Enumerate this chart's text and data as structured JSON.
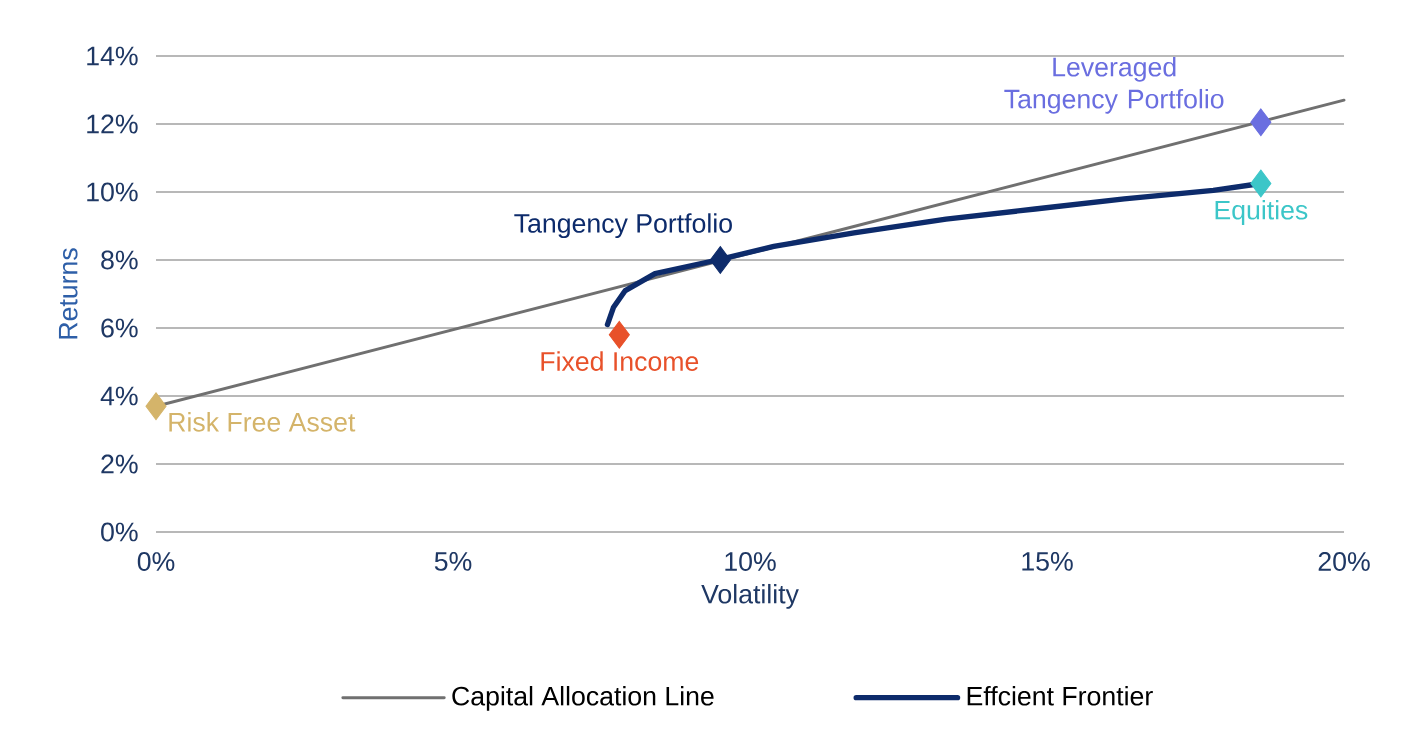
{
  "chart_data": {
    "type": "scatter",
    "xlabel": "Volatility",
    "ylabel": "Returns",
    "xlim": [
      0,
      20
    ],
    "ylim": [
      0,
      14
    ],
    "xticks": [
      {
        "value": 0,
        "label": "0%"
      },
      {
        "value": 5,
        "label": "5%"
      },
      {
        "value": 10,
        "label": "10%"
      },
      {
        "value": 15,
        "label": "15%"
      },
      {
        "value": 20,
        "label": "20%"
      }
    ],
    "yticks": [
      {
        "value": 0,
        "label": "0%"
      },
      {
        "value": 2,
        "label": "2%"
      },
      {
        "value": 4,
        "label": "4%"
      },
      {
        "value": 6,
        "label": "6%"
      },
      {
        "value": 8,
        "label": "8%"
      },
      {
        "value": 10,
        "label": "10%"
      },
      {
        "value": 12,
        "label": "12%"
      },
      {
        "value": 14,
        "label": "14%"
      }
    ],
    "grid": "y",
    "legend": "bottom",
    "series": [
      {
        "name": "Capital Allocation Line",
        "type": "line",
        "color": "#707070",
        "x": [
          0,
          20
        ],
        "values": [
          3.7,
          12.7
        ]
      },
      {
        "name": "Effcient Frontier",
        "type": "line",
        "color": "#0d2b6b",
        "x": [
          7.6,
          7.7,
          7.9,
          8.4,
          9.45,
          10.4,
          11.75,
          13.3,
          14.8,
          16.3,
          17.8,
          18.6
        ],
        "values": [
          6.1,
          6.6,
          7.1,
          7.6,
          8.0,
          8.4,
          8.8,
          9.2,
          9.5,
          9.8,
          10.05,
          10.25
        ]
      },
      {
        "name": "Risk Free Asset",
        "marker": "diamond",
        "color": "#d4b46a",
        "x": [
          0
        ],
        "values": [
          3.7
        ]
      },
      {
        "name": "Fixed Income",
        "marker": "diamond",
        "color": "#e8512a",
        "x": [
          7.8
        ],
        "values": [
          5.8
        ]
      },
      {
        "name": "Tangency Portfolio",
        "marker": "diamond",
        "color": "#0d2b6b",
        "x": [
          9.5
        ],
        "values": [
          8.0
        ]
      },
      {
        "name": "Equities",
        "marker": "diamond",
        "color": "#3cc6c8",
        "x": [
          18.6
        ],
        "values": [
          10.25
        ]
      },
      {
        "name": "Leveraged Tangency Portfolio",
        "marker": "diamond",
        "color": "#6a6ee0",
        "x": [
          18.6
        ],
        "values": [
          12.05
        ]
      }
    ]
  }
}
